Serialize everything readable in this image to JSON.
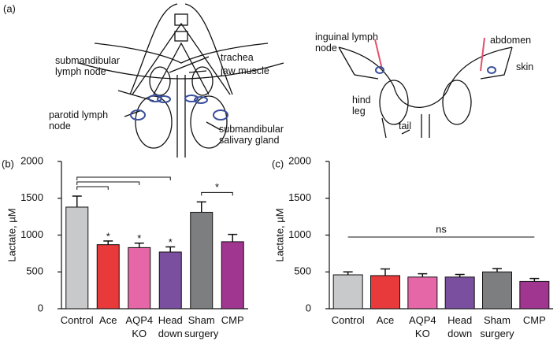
{
  "diagram": {
    "panel_label": "(a)",
    "labels": [
      "submandibular lymph node",
      "trachea",
      "jaw muscle",
      "parotid lymph node",
      "submandibular salivary gland",
      "inguinal lymph node",
      "abdomen",
      "skin",
      "hind leg",
      "tail"
    ]
  },
  "chart_data": [
    {
      "type": "bar",
      "panel_label": "(b)",
      "y_label": "Lactate, µM",
      "categories": [
        "Control",
        "Ace",
        "AQP4 KO",
        "Head down",
        "Sham surgery",
        "CMP"
      ],
      "values": [
        1380,
        870,
        830,
        770,
        1310,
        910
      ],
      "errors": [
        150,
        50,
        60,
        70,
        140,
        100
      ],
      "colors": [
        "#c8c9cb",
        "#e8393b",
        "#e667a8",
        "#7a4fa0",
        "#7d7e80",
        "#a0368f"
      ],
      "bar_labels": [
        null,
        "*",
        "*",
        "*",
        null,
        null
      ],
      "brackets": [
        [
          0,
          1
        ],
        [
          0,
          2
        ],
        [
          0,
          3
        ],
        [
          4,
          5
        ]
      ],
      "bracket_labels": [
        null,
        null,
        null,
        "*"
      ],
      "ylim": [
        0,
        2000
      ],
      "yticks": [
        0,
        500,
        1000,
        1500,
        2000
      ]
    },
    {
      "type": "bar",
      "panel_label": "(c)",
      "y_label": "Lactate, µM",
      "categories": [
        "Control",
        "Ace",
        "AQP4 KO",
        "Head down",
        "Sham surgery",
        "CMP"
      ],
      "values": [
        460,
        450,
        430,
        430,
        500,
        370
      ],
      "errors": [
        40,
        90,
        45,
        35,
        45,
        40
      ],
      "colors": [
        "#c8c9cb",
        "#e8393b",
        "#e667a8",
        "#7a4fa0",
        "#7d7e80",
        "#a0368f"
      ],
      "line_brackets": [
        [
          0,
          5
        ]
      ],
      "line_bracket_labels": [
        "ns"
      ],
      "ylim": [
        0,
        2000
      ],
      "yticks": [
        0,
        500,
        1000,
        1500,
        2000
      ]
    }
  ]
}
